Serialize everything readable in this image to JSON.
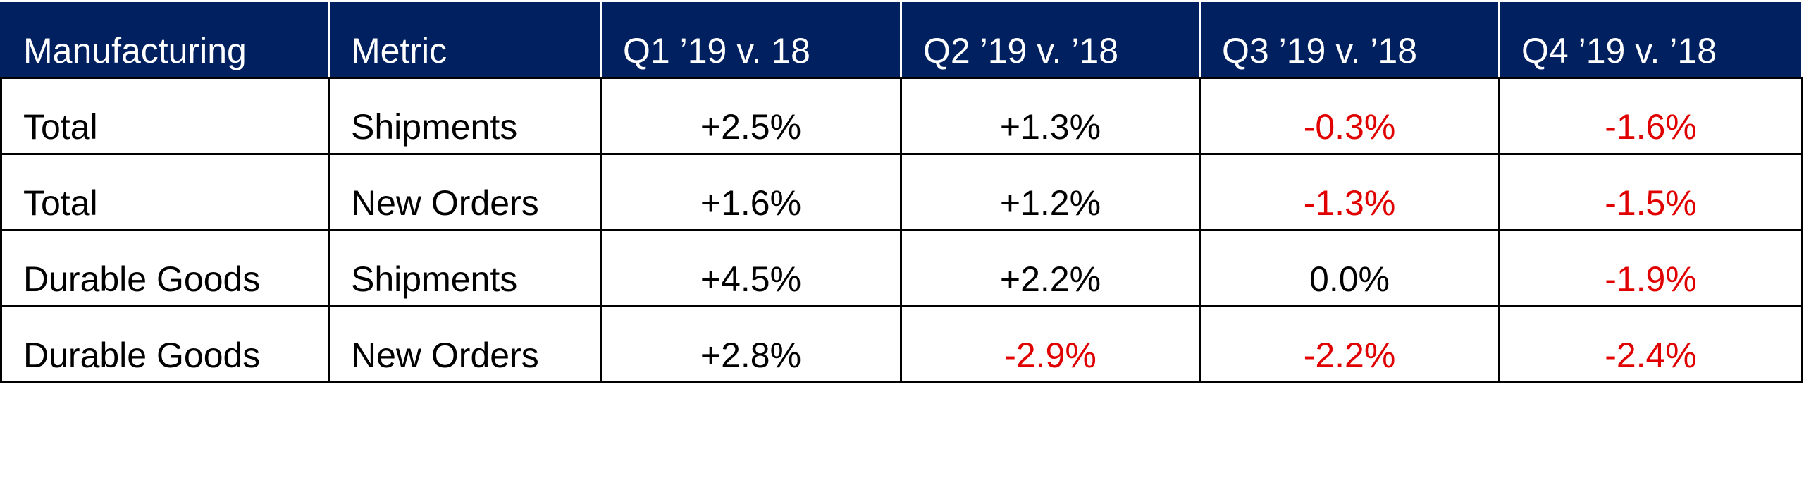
{
  "table": {
    "header": [
      "Manufacturing",
      "Metric",
      "Q1 ’19 v. 18",
      "Q2 ’19 v. ’18",
      "Q3 ’19 v. ’18",
      "Q4 ’19 v. ’18"
    ],
    "rows": [
      [
        "Total",
        "Shipments",
        "+2.5%",
        "+1.3%",
        "-0.3%",
        "-1.6%"
      ],
      [
        "Total",
        "New Orders",
        "+1.6%",
        "+1.2%",
        "-1.3%",
        "-1.5%"
      ],
      [
        "Durable Goods",
        "Shipments",
        "+4.5%",
        "+2.2%",
        "0.0%",
        "-1.9%"
      ],
      [
        "Durable Goods",
        "New Orders",
        "+2.8%",
        "-2.9%",
        "-2.2%",
        "-2.4%"
      ]
    ]
  }
}
